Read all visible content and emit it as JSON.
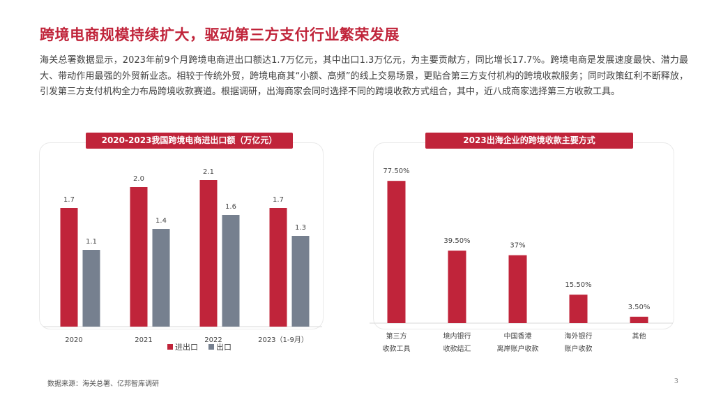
{
  "colors": {
    "accent": "#c0243a",
    "title_text": "#c0243a",
    "series_export_gray": "#76808f",
    "axis": "#d9d9d9"
  },
  "title": "跨境电商规模持续扩大，驱动第三方支付行业繁荣发展",
  "paragraph": "海关总署数据显示，2023年前9个月跨境电商进出口额达1.7万亿元，其中出口1.3万亿元，为主要贡献方，同比增长17.7%。跨境电商是发展速度最快、潜力最大、带动作用最强的外贸新业态。相较于传统外贸，跨境电商其“小额、高频”的线上交易场景，更贴合第三方支付机构的跨境收款服务；同时政策红利不断释放，引发第三方支付机构全力布局跨境收款赛道。根据调研，出海商家会同时选择不同的跨境收款方式组合，其中，近八成商家选择第三方收款工具。",
  "source": "数据来源：海关总署、亿邦智库调研",
  "page_number": "3",
  "chart_data": [
    {
      "type": "bar",
      "title": "2020-2023我国跨境电商进出口额（万亿元）",
      "categories": [
        "2020",
        "2021",
        "2022",
        "2023（1-9月）"
      ],
      "series": [
        {
          "name": "进出口",
          "values": [
            1.7,
            2.0,
            2.1,
            1.7
          ],
          "labels": [
            "1.7",
            "2.0",
            "2.1",
            "1.7"
          ]
        },
        {
          "name": "出口",
          "values": [
            1.1,
            1.4,
            1.6,
            1.3
          ],
          "labels": [
            "1.1",
            "1.4",
            "1.6",
            "1.3"
          ]
        }
      ],
      "ylim": [
        0,
        2.5
      ],
      "legend": "bottom-right",
      "grid": false
    },
    {
      "type": "bar",
      "title": "2023出海企业的跨境收款主要方式",
      "categories": [
        [
          "第三方",
          "收款工具"
        ],
        [
          "境内银行",
          "收款结汇"
        ],
        [
          "中国香港",
          "离岸账户收款"
        ],
        [
          "海外银行",
          "账户收款"
        ],
        [
          "其他"
        ]
      ],
      "values": [
        77.5,
        39.5,
        37,
        15.5,
        3.5
      ],
      "labels": [
        "77.50%",
        "39.50%",
        "37%",
        "15.50%",
        "3.50%"
      ],
      "ylim": [
        0,
        100
      ],
      "grid": false
    }
  ]
}
